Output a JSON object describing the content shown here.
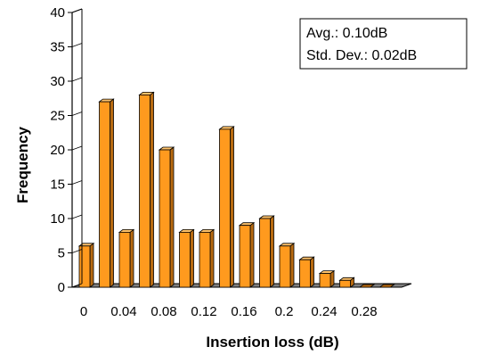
{
  "chart_data": {
    "type": "bar",
    "xlabel": "Insertion loss (dB)",
    "ylabel": "Frequency",
    "ylim": [
      0,
      40
    ],
    "yticks": [
      "0",
      "5",
      "10",
      "15",
      "20",
      "25",
      "30",
      "35",
      "40"
    ],
    "xtick_labels": [
      "0",
      "0.04",
      "0.08",
      "0.12",
      "0.16",
      "0.2",
      "0.24",
      "0.28"
    ],
    "categories": [
      "0",
      "0.02",
      "0.04",
      "0.06",
      "0.08",
      "0.10",
      "0.12",
      "0.14",
      "0.16",
      "0.18",
      "0.2",
      "0.22",
      "0.24",
      "0.26",
      "0.28",
      "0.30"
    ],
    "values": [
      6,
      27,
      8,
      28,
      20,
      8,
      8,
      23,
      9,
      10,
      6,
      4,
      2,
      1,
      0,
      0
    ],
    "annotation": {
      "avg": "Avg.: 0.10dB",
      "std": "Std. Dev.: 0.02dB"
    },
    "legend_position": "top-right",
    "grid": false,
    "colors": {
      "bar_front": "#FF9A1E",
      "bar_side": "#B86A10",
      "bar_top": "#FFC26A",
      "floor": "#808080"
    }
  }
}
